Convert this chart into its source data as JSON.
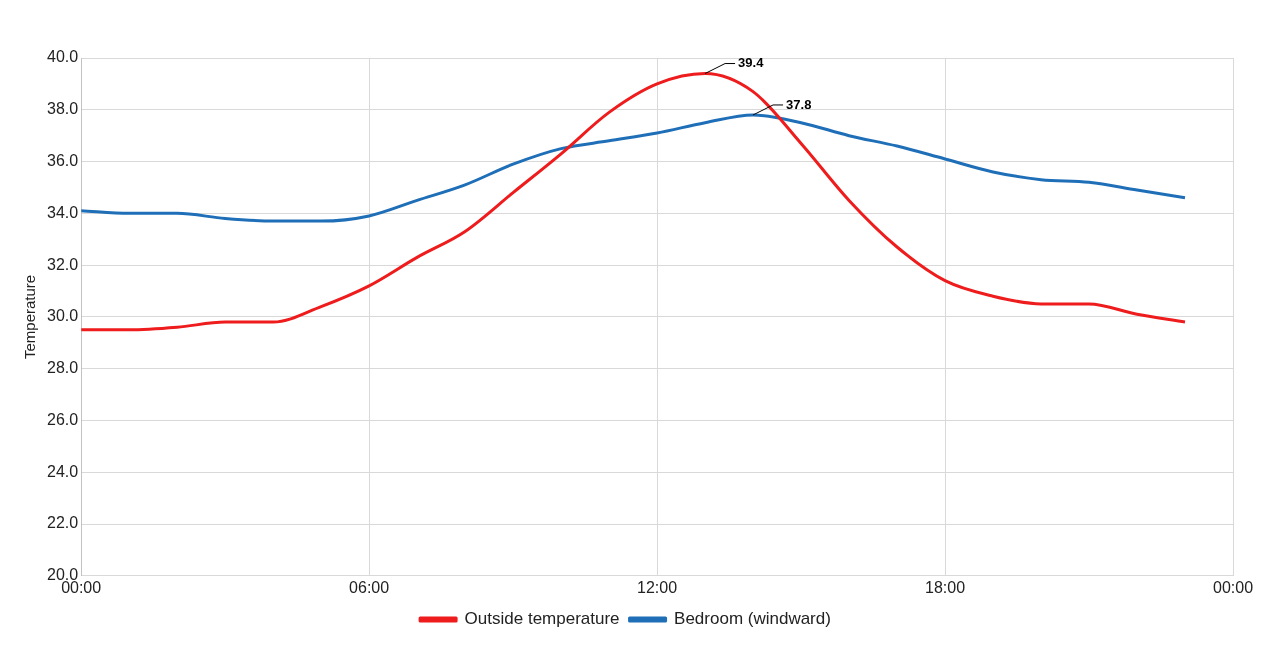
{
  "chart_data": {
    "type": "line",
    "ylabel": "Temperature",
    "x": [
      0,
      1,
      2,
      3,
      4,
      5,
      6,
      7,
      8,
      9,
      10,
      11,
      12,
      13,
      14,
      15,
      16,
      17,
      18,
      19,
      20,
      21,
      22,
      23
    ],
    "series": [
      {
        "name": "Outside temperature",
        "color": "#ee1c1c",
        "values": [
          29.5,
          29.5,
          29.6,
          29.8,
          29.8,
          30.4,
          31.2,
          32.3,
          33.3,
          34.8,
          36.3,
          37.9,
          39.0,
          39.4,
          38.7,
          36.7,
          34.5,
          32.7,
          31.4,
          30.8,
          30.5,
          30.5,
          30.1,
          29.8
        ]
      },
      {
        "name": "Bedroom (windward)",
        "color": "#1f6fb8",
        "values": [
          34.1,
          34.0,
          34.0,
          33.8,
          33.7,
          33.7,
          33.9,
          34.5,
          35.1,
          35.9,
          36.5,
          36.8,
          37.1,
          37.5,
          37.8,
          37.5,
          37.0,
          36.6,
          36.1,
          35.6,
          35.3,
          35.2,
          34.9,
          34.6
        ]
      }
    ],
    "xlim": [
      0,
      24
    ],
    "xticks": [
      {
        "value": 0,
        "label": "00:00"
      },
      {
        "value": 6,
        "label": "06:00"
      },
      {
        "value": 12,
        "label": "12:00"
      },
      {
        "value": 18,
        "label": "18:00"
      },
      {
        "value": 24,
        "label": "00:00"
      }
    ],
    "ylim": [
      20,
      40
    ],
    "yticks": [
      {
        "value": 20,
        "label": "20.0"
      },
      {
        "value": 22,
        "label": "22.0"
      },
      {
        "value": 24,
        "label": "24.0"
      },
      {
        "value": 26,
        "label": "26.0"
      },
      {
        "value": 28,
        "label": "28.0"
      },
      {
        "value": 30,
        "label": "30.0"
      },
      {
        "value": 32,
        "label": "32.0"
      },
      {
        "value": 34,
        "label": "34.0"
      },
      {
        "value": 36,
        "label": "36.0"
      },
      {
        "value": 38,
        "label": "38.0"
      },
      {
        "value": 40,
        "label": "40.0"
      }
    ],
    "annotations": [
      {
        "text": "39.4",
        "x": 13,
        "y": 39.4
      },
      {
        "text": "37.8",
        "x": 14,
        "y": 37.8
      }
    ],
    "grid": true,
    "legend": "bottom",
    "marker": "none",
    "line_style": "solid"
  }
}
